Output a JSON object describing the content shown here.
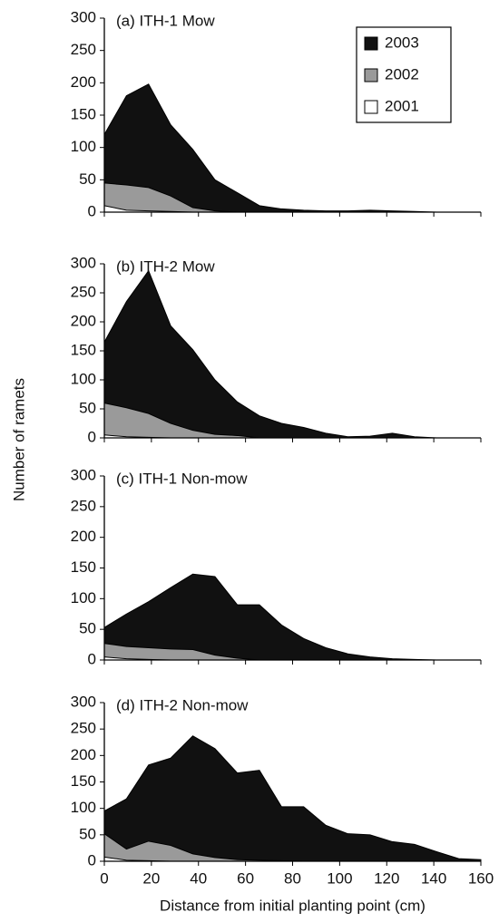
{
  "chart_data": [
    {
      "type": "area",
      "title": "(a)  ITH-1 Mow",
      "y_label": "Number of ramets",
      "legend": "upper right",
      "x": [
        0,
        9.4,
        18.8,
        28.2,
        37.6,
        47,
        56.5,
        65.9,
        75.3,
        84.7,
        94.1,
        103.5,
        112.9,
        122.4,
        131.8,
        141.2,
        150.6,
        160
      ],
      "series": [
        {
          "name": "2003",
          "color": "#111111",
          "values": [
            120,
            180,
            198,
            135,
            97,
            50,
            30,
            10,
            5,
            3,
            2,
            2,
            3,
            2,
            1,
            0,
            0,
            0
          ]
        },
        {
          "name": "2002",
          "color": "#9a9a9a",
          "values": [
            45,
            42,
            38,
            25,
            7,
            2,
            0,
            0,
            0,
            0,
            0,
            0,
            0,
            0,
            0,
            0,
            0,
            0
          ]
        },
        {
          "name": "2001",
          "color": "#ffffff",
          "values": [
            10,
            3,
            2,
            1,
            0,
            0,
            0,
            0,
            0,
            0,
            0,
            0,
            0,
            0,
            0,
            0,
            0,
            0
          ]
        }
      ],
      "xlim": [
        0,
        160
      ],
      "xticks": [
        0,
        20,
        40,
        60,
        80,
        100,
        120,
        140,
        160
      ],
      "xtick_labels": false,
      "ylim": [
        0,
        300
      ],
      "yticks": [
        0,
        50,
        100,
        150,
        200,
        250,
        300
      ]
    },
    {
      "type": "area",
      "title": "(b)  ITH-2 Mow",
      "x": [
        0,
        9.4,
        18.8,
        28.2,
        37.6,
        47,
        56.5,
        65.9,
        75.3,
        84.7,
        94.1,
        103.5,
        112.9,
        122.4,
        131.8,
        141.2,
        150.6,
        160
      ],
      "series": [
        {
          "name": "2003",
          "color": "#111111",
          "values": [
            165,
            235,
            288,
            193,
            152,
            100,
            62,
            38,
            25,
            18,
            8,
            2,
            3,
            8,
            2,
            0,
            0,
            0
          ]
        },
        {
          "name": "2002",
          "color": "#9a9a9a",
          "values": [
            60,
            52,
            42,
            25,
            13,
            6,
            4,
            0,
            0,
            0,
            0,
            0,
            0,
            0,
            0,
            0,
            0,
            0
          ]
        },
        {
          "name": "2001",
          "color": "#ffffff",
          "values": [
            5,
            2,
            1,
            0,
            0,
            0,
            0,
            0,
            0,
            0,
            0,
            0,
            0,
            0,
            0,
            0,
            0,
            0
          ]
        }
      ],
      "xlim": [
        0,
        160
      ],
      "xticks": [
        0,
        20,
        40,
        60,
        80,
        100,
        120,
        140,
        160
      ],
      "xtick_labels": false,
      "ylim": [
        0,
        300
      ],
      "yticks": [
        0,
        50,
        100,
        150,
        200,
        250,
        300
      ]
    },
    {
      "type": "area",
      "title": "(c)  ITH-1 Non-mow",
      "x": [
        0,
        9.4,
        18.8,
        28.2,
        37.6,
        47,
        56.5,
        65.9,
        75.3,
        84.7,
        94.1,
        103.5,
        112.9,
        122.4,
        131.8,
        141.2,
        150.6,
        160
      ],
      "series": [
        {
          "name": "2003",
          "color": "#111111",
          "values": [
            53,
            75,
            95,
            118,
            140,
            136,
            90,
            90,
            57,
            35,
            20,
            10,
            5,
            2,
            1,
            0,
            0,
            0
          ]
        },
        {
          "name": "2002",
          "color": "#9a9a9a",
          "values": [
            27,
            22,
            20,
            18,
            17,
            8,
            3,
            0,
            0,
            0,
            0,
            0,
            0,
            0,
            0,
            0,
            0,
            0
          ]
        },
        {
          "name": "2001",
          "color": "#ffffff",
          "values": [
            5,
            2,
            1,
            0,
            0,
            0,
            0,
            0,
            0,
            0,
            0,
            0,
            0,
            0,
            0,
            0,
            0,
            0
          ]
        }
      ],
      "xlim": [
        0,
        160
      ],
      "xticks": [
        0,
        20,
        40,
        60,
        80,
        100,
        120,
        140,
        160
      ],
      "xtick_labels": false,
      "ylim": [
        0,
        300
      ],
      "yticks": [
        0,
        50,
        100,
        150,
        200,
        250,
        300
      ]
    },
    {
      "type": "area",
      "title": "(d)  ITH-2 Non-mow",
      "x_label": "Distance from initial planting point (cm)",
      "x": [
        0,
        9.4,
        18.8,
        28.2,
        37.6,
        47,
        56.5,
        65.9,
        75.3,
        84.7,
        94.1,
        103.5,
        112.9,
        122.4,
        131.8,
        141.2,
        150.6,
        160
      ],
      "series": [
        {
          "name": "2003",
          "color": "#111111",
          "values": [
            95,
            118,
            182,
            195,
            237,
            213,
            167,
            172,
            103,
            103,
            68,
            52,
            50,
            37,
            32,
            18,
            5,
            3
          ]
        },
        {
          "name": "2002",
          "color": "#9a9a9a",
          "values": [
            52,
            23,
            38,
            30,
            14,
            7,
            3,
            2,
            1,
            0,
            0,
            0,
            0,
            0,
            0,
            0,
            0,
            0
          ]
        },
        {
          "name": "2001",
          "color": "#ffffff",
          "values": [
            8,
            2,
            1,
            0,
            0,
            0,
            0,
            0,
            0,
            0,
            0,
            0,
            0,
            0,
            0,
            0,
            0,
            0
          ]
        }
      ],
      "xlim": [
        0,
        160
      ],
      "xticks": [
        0,
        20,
        40,
        60,
        80,
        100,
        120,
        140,
        160
      ],
      "xtick_labels": true,
      "ylim": [
        0,
        300
      ],
      "yticks": [
        0,
        50,
        100,
        150,
        200,
        250,
        300
      ]
    }
  ]
}
